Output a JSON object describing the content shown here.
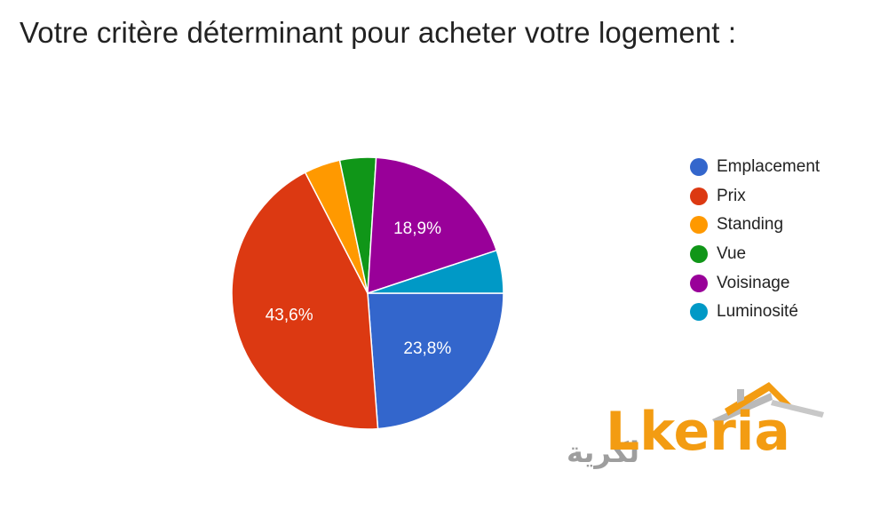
{
  "chart_data": {
    "type": "pie",
    "title": "Votre critère déterminant pour acheter votre logement :",
    "categories": [
      "Emplacement",
      "Prix",
      "Standing",
      "Vue",
      "Voisinage",
      "Luminosité"
    ],
    "values": [
      23.8,
      43.6,
      4.3,
      4.3,
      18.9,
      5.1
    ],
    "data_labels": [
      "23,8%",
      "43,6%",
      "",
      "",
      "18,9%",
      ""
    ],
    "colors": [
      "#3366cc",
      "#dc3912",
      "#ff9900",
      "#109618",
      "#990099",
      "#0099c6"
    ],
    "start": "3 o'clock, clockwise",
    "legend_position": "right"
  },
  "logo": {
    "text": "Lkeria",
    "arabic_text": "لكرية"
  }
}
